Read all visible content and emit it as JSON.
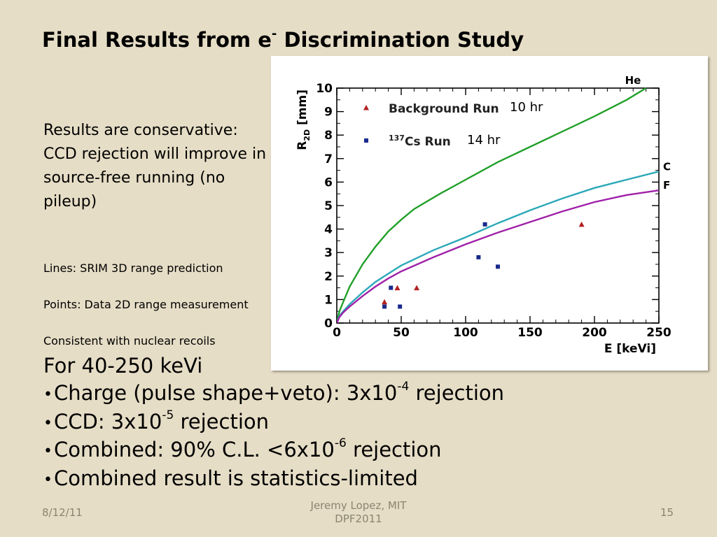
{
  "slide": {
    "title_main": "Final Results from e",
    "title_sup": "-",
    "title_rest": " Discrimination Study",
    "results_text": "Results are conservative: CCD rejection will improve in source-free running (no pileup)",
    "note_lines": "Lines: SRIM 3D range prediction",
    "note_points": "Points: Data 2D range measurement",
    "note_consistent": "Consistent with nuclear recoils",
    "range_heading": "For 40-250 keVi",
    "bullets": [
      {
        "text": "Charge (pulse shape+veto): 3x10",
        "sup": "-4",
        "tail": " rejection"
      },
      {
        "text": "CCD: 3x10",
        "sup": "-5",
        "tail": " rejection"
      },
      {
        "text": "Combined: 90% C.L. <6x10",
        "sup": "-6",
        "tail": " rejection"
      },
      {
        "text": "Combined result is statistics-limited",
        "sup": "",
        "tail": ""
      }
    ],
    "bullet_char": "•"
  },
  "footer": {
    "date": "8/12/11",
    "author_line1": "Jeremy Lopez, MIT",
    "author_line2": "DPF2011",
    "page": "15"
  },
  "chart_data": {
    "type": "scatter",
    "xlabel": "E [keVi]",
    "ylabel": "R",
    "ylabel_sub": "2D",
    "ylabel_unit": " [mm]",
    "xlim": [
      0,
      250
    ],
    "ylim": [
      0,
      10
    ],
    "x_ticks": [
      0,
      50,
      100,
      150,
      200,
      250
    ],
    "y_ticks": [
      0,
      1,
      2,
      3,
      4,
      5,
      6,
      7,
      8,
      9,
      10
    ],
    "legend": [
      {
        "name": "Background Run",
        "sup": "",
        "marker": "triangle",
        "color": "#b22020",
        "duration": "10 hr"
      },
      {
        "name": "Cs Run",
        "sup": "137",
        "marker": "square",
        "color": "#1a2b8c",
        "duration": "14 hr"
      }
    ],
    "series": [
      {
        "name": "Background Run",
        "marker": "triangle",
        "color": "#b22020",
        "points": [
          [
            37,
            0.9
          ],
          [
            47,
            1.5
          ],
          [
            62,
            1.5
          ],
          [
            190,
            4.2
          ]
        ]
      },
      {
        "name": "Cs Run",
        "marker": "square",
        "color": "#1a2b8c",
        "points": [
          [
            37,
            0.7
          ],
          [
            42,
            1.5
          ],
          [
            49,
            0.7
          ],
          [
            110,
            2.8
          ],
          [
            115,
            4.2
          ],
          [
            125,
            2.4
          ]
        ]
      }
    ],
    "curves": [
      {
        "label": "He",
        "color": "#22a02a",
        "points": [
          [
            0,
            0
          ],
          [
            2,
            0.5
          ],
          [
            5,
            0.9
          ],
          [
            10,
            1.55
          ],
          [
            20,
            2.5
          ],
          [
            30,
            3.25
          ],
          [
            40,
            3.9
          ],
          [
            50,
            4.4
          ],
          [
            60,
            4.85
          ],
          [
            80,
            5.5
          ],
          [
            100,
            6.1
          ],
          [
            125,
            6.85
          ],
          [
            150,
            7.5
          ],
          [
            175,
            8.15
          ],
          [
            200,
            8.8
          ],
          [
            225,
            9.5
          ],
          [
            240,
            10.0
          ]
        ]
      },
      {
        "label": "C",
        "color": "#2ba8b8",
        "points": [
          [
            0,
            0
          ],
          [
            2,
            0.3
          ],
          [
            5,
            0.5
          ],
          [
            10,
            0.8
          ],
          [
            20,
            1.3
          ],
          [
            30,
            1.75
          ],
          [
            40,
            2.1
          ],
          [
            50,
            2.45
          ],
          [
            75,
            3.1
          ],
          [
            100,
            3.65
          ],
          [
            125,
            4.25
          ],
          [
            150,
            4.8
          ],
          [
            175,
            5.3
          ],
          [
            200,
            5.75
          ],
          [
            225,
            6.1
          ],
          [
            250,
            6.45
          ]
        ]
      },
      {
        "label": "F",
        "color": "#a020a8",
        "points": [
          [
            0,
            0
          ],
          [
            2,
            0.25
          ],
          [
            5,
            0.45
          ],
          [
            10,
            0.7
          ],
          [
            20,
            1.15
          ],
          [
            30,
            1.55
          ],
          [
            40,
            1.9
          ],
          [
            50,
            2.2
          ],
          [
            75,
            2.8
          ],
          [
            100,
            3.35
          ],
          [
            125,
            3.85
          ],
          [
            150,
            4.3
          ],
          [
            175,
            4.75
          ],
          [
            200,
            5.15
          ],
          [
            225,
            5.45
          ],
          [
            250,
            5.65
          ]
        ]
      }
    ]
  }
}
